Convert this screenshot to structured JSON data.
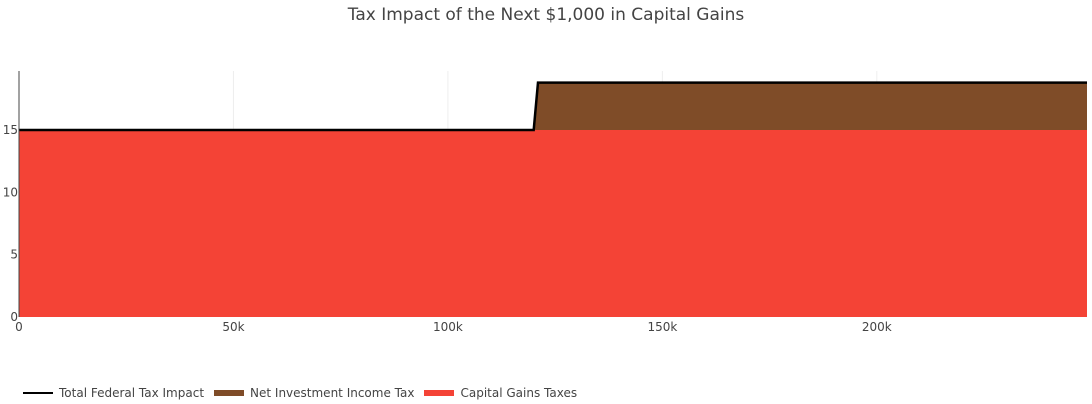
{
  "title": "Tax Impact of the Next $1,000 in Capital Gains",
  "legend": [
    {
      "label": "Total Federal Tax Impact",
      "type": "line",
      "color": "#000000"
    },
    {
      "label": "Net Investment Income Tax",
      "type": "fill",
      "color": "#7f4c28"
    },
    {
      "label": "Capital Gains Taxes",
      "type": "fill",
      "color": "#f44336"
    }
  ],
  "chart_data": {
    "type": "area",
    "title": "Tax Impact of the Next $1,000 in Capital Gains",
    "xlabel": "",
    "ylabel": "",
    "xlim": [
      0,
      249000
    ],
    "ylim": [
      0,
      20
    ],
    "x_ticks": [
      0,
      50000,
      100000,
      150000,
      200000
    ],
    "x_tick_labels": [
      "0",
      "50k",
      "100k",
      "150k",
      "200k"
    ],
    "y_ticks": [
      0,
      5,
      10,
      15
    ],
    "y_tick_labels": [
      "0",
      "5",
      "10",
      "15"
    ],
    "grid": {
      "x": true,
      "y": false
    },
    "legend_position": "bottom-left, horizontal",
    "x": [
      0,
      120000,
      121000,
      249000
    ],
    "series": [
      {
        "name": "Capital Gains Taxes",
        "type": "area",
        "color": "#f44336",
        "values": [
          15,
          15,
          15,
          15
        ]
      },
      {
        "name": "Net Investment Income Tax",
        "type": "stacked-area",
        "color": "#7f4c28",
        "values": [
          0,
          0,
          3.8,
          3.8
        ]
      },
      {
        "name": "Total Federal Tax Impact",
        "type": "line",
        "color": "#000000",
        "values": [
          15,
          15,
          18.8,
          18.8
        ]
      }
    ]
  }
}
